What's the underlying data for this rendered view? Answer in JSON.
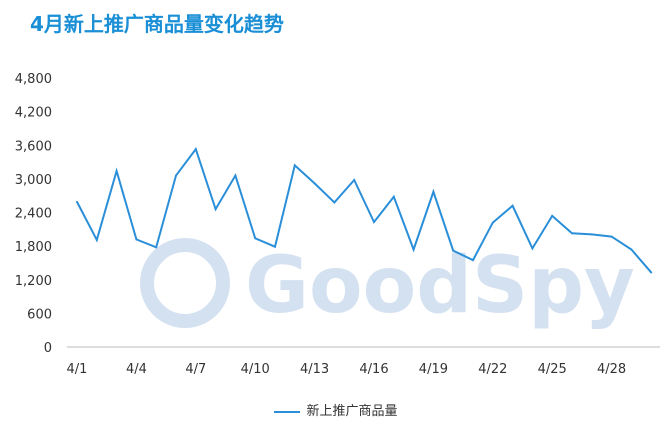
{
  "chart_data": {
    "type": "line",
    "title": "4月新上推广商品量变化趋势",
    "xlabel": "",
    "ylabel": "",
    "ylim": [
      0,
      4800
    ],
    "yticks": [
      "0",
      "600",
      "1,200",
      "1,800",
      "2,400",
      "3,000",
      "3,600",
      "4,200",
      "4,800"
    ],
    "ytick_values": [
      0,
      600,
      1200,
      1800,
      2400,
      3000,
      3600,
      4200,
      4800
    ],
    "xtick_labels": [
      "4/1",
      "4/4",
      "4/7",
      "4/10",
      "4/13",
      "4/16",
      "4/19",
      "4/22",
      "4/25",
      "4/28"
    ],
    "grid": false,
    "legend_position": "bottom",
    "categories": [
      "4/1",
      "4/2",
      "4/3",
      "4/4",
      "4/5",
      "4/6",
      "4/7",
      "4/8",
      "4/9",
      "4/10",
      "4/11",
      "4/12",
      "4/13",
      "4/14",
      "4/15",
      "4/16",
      "4/17",
      "4/18",
      "4/19",
      "4/20",
      "4/21",
      "4/22",
      "4/23",
      "4/24",
      "4/25",
      "4/26",
      "4/27",
      "4/28",
      "4/29",
      "4/30"
    ],
    "series": [
      {
        "name": "新上推广商品量",
        "color": "#2a8fd8",
        "values": [
          2590,
          1910,
          3140,
          1920,
          1780,
          3060,
          3530,
          2460,
          3060,
          1940,
          1790,
          3240,
          2920,
          2580,
          2980,
          2230,
          2680,
          1740,
          2770,
          1720,
          1550,
          2220,
          2520,
          1760,
          2340,
          2030,
          2010,
          1970,
          1740,
          1330
        ]
      }
    ]
  },
  "watermark": "GoodSpy"
}
